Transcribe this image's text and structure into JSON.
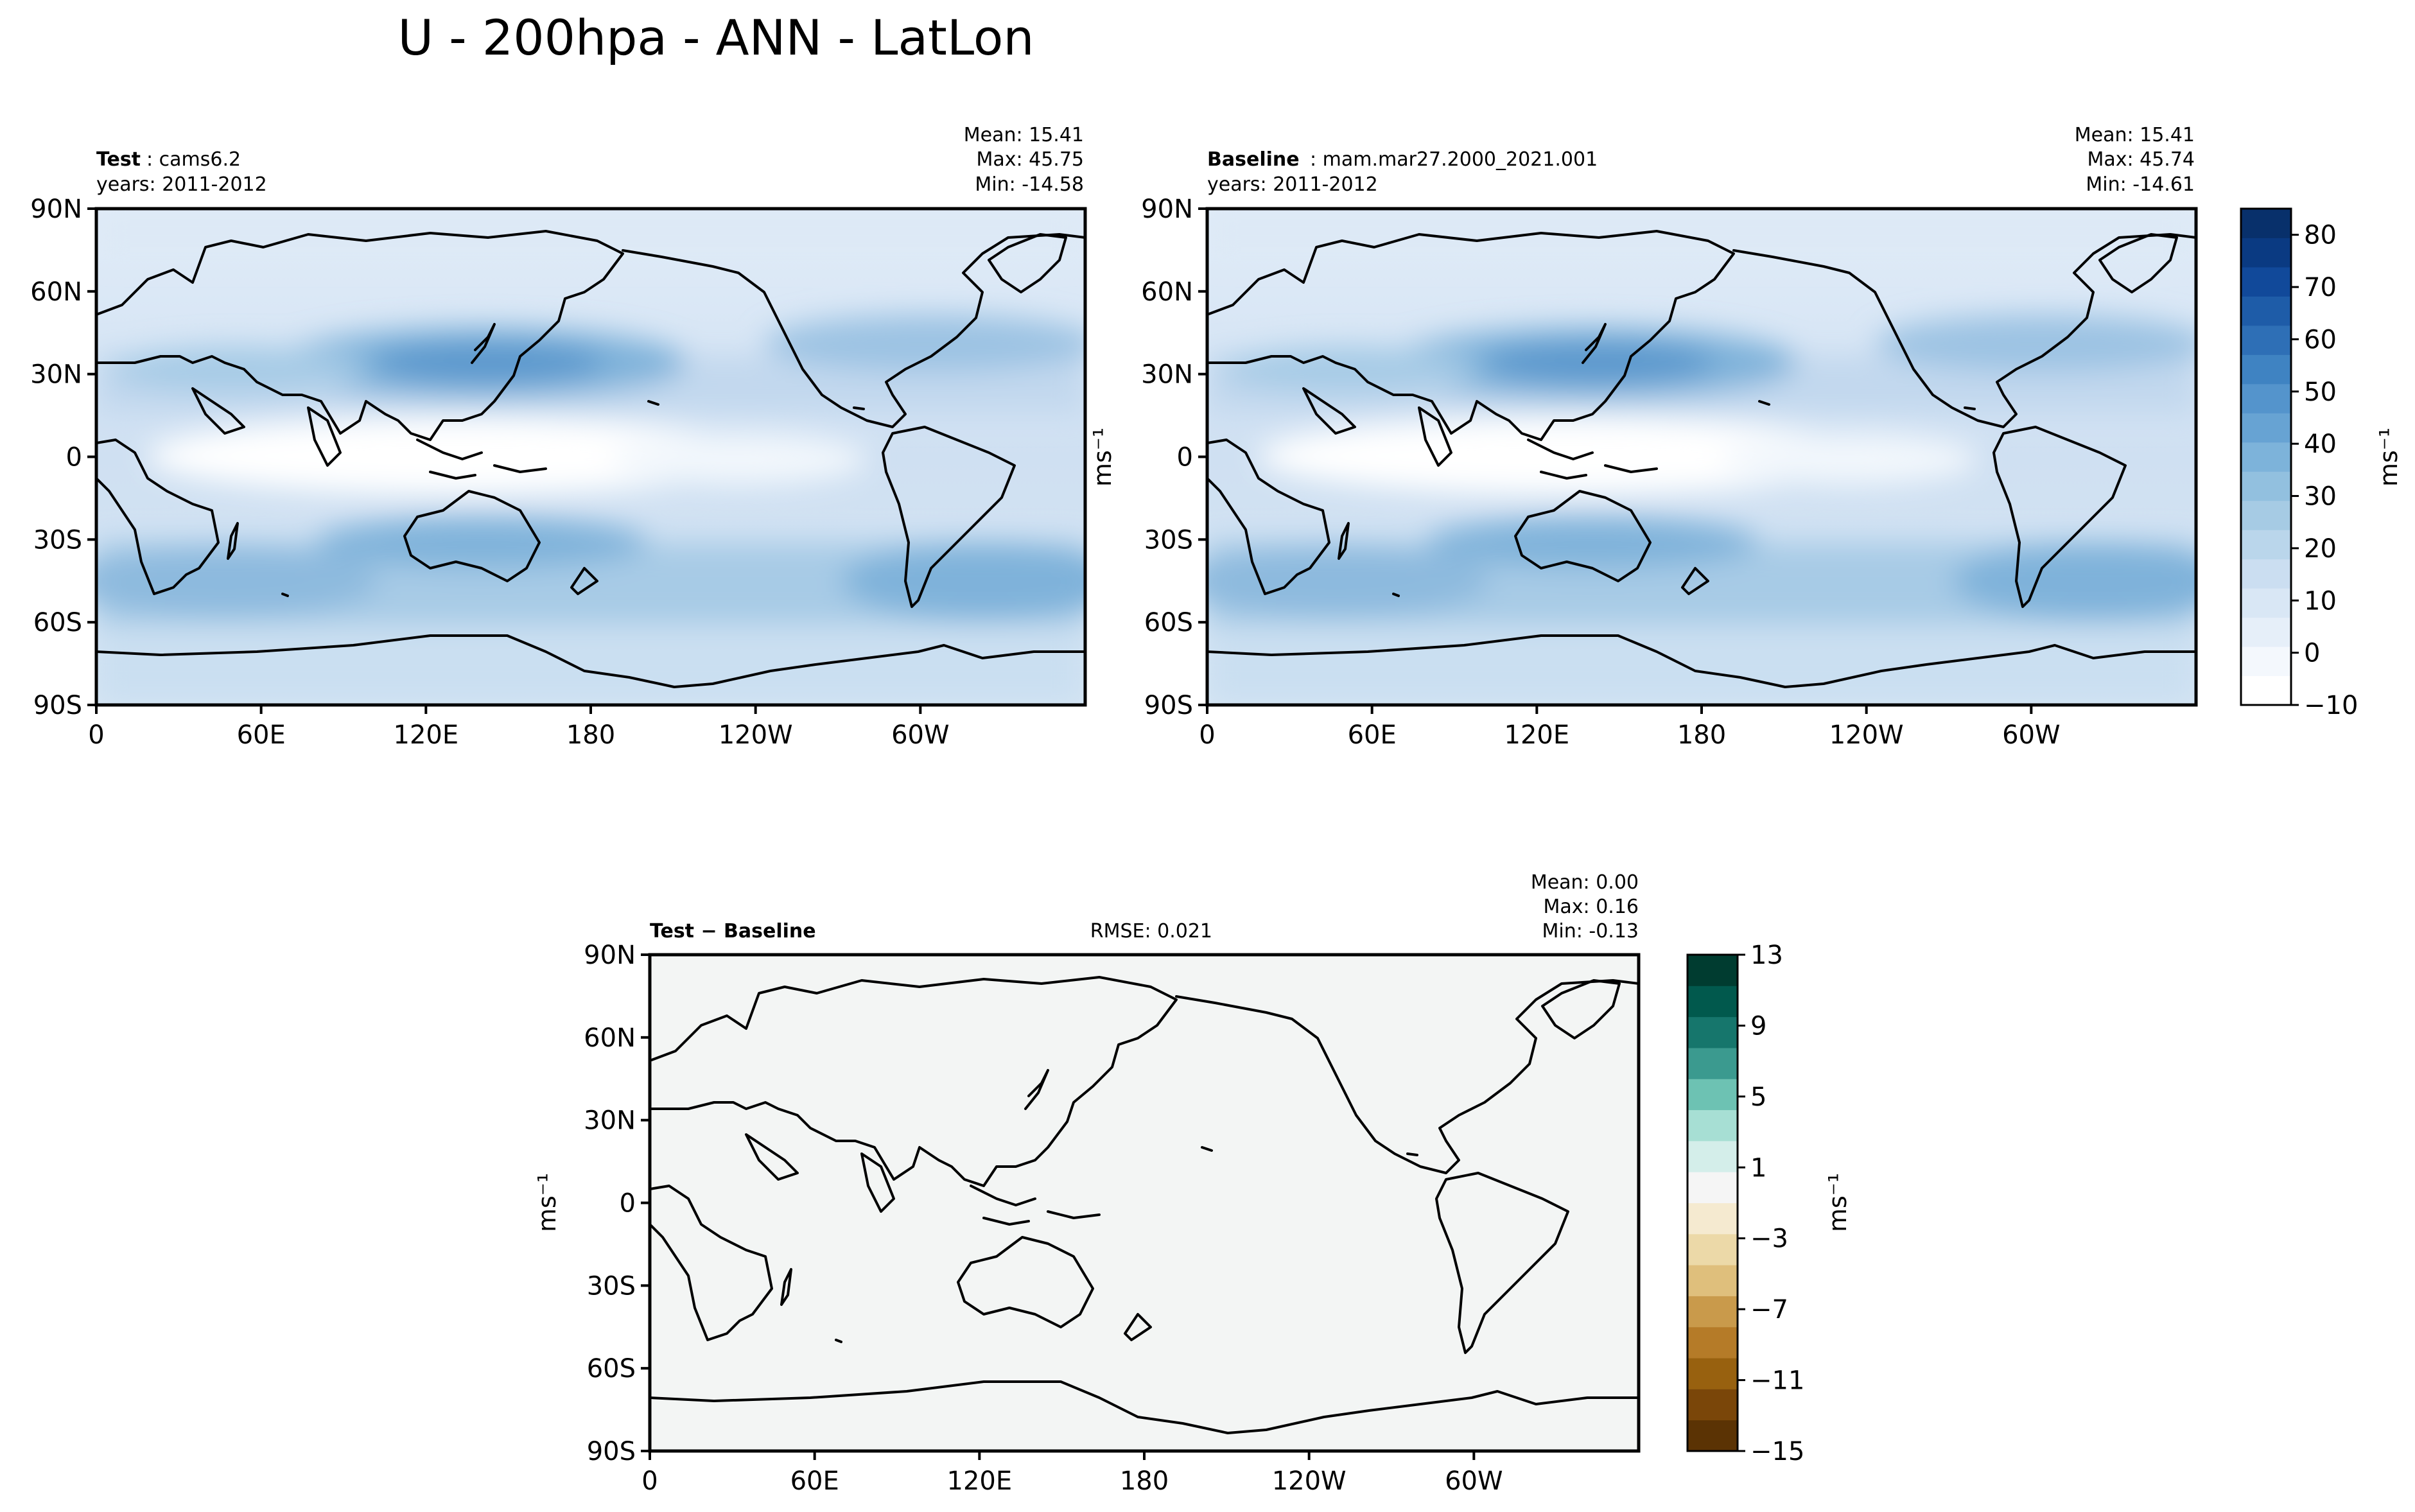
{
  "figure": {
    "title": "U - 200hpa - ANN - LatLon"
  },
  "colors": {
    "main_colorbar": [
      "#ffffff",
      "#f4f8fd",
      "#e6eff9",
      "#d9e7f5",
      "#cbdef1",
      "#bad6eb",
      "#a6cbe4",
      "#92c0df",
      "#7db3da",
      "#67a3d3",
      "#5494cc",
      "#3f83c2",
      "#2e6fb6",
      "#1e5ca8",
      "#11499a",
      "#0a3a82",
      "#08306b"
    ],
    "diff_colorbar": [
      "#5b3304",
      "#7a4609",
      "#98610f",
      "#b57b28",
      "#c99a4b",
      "#dfbf7c",
      "#ecd9a8",
      "#f5ead0",
      "#f5f5f5",
      "#d4eeea",
      "#a7dfd4",
      "#6dc2b3",
      "#3b9a8f",
      "#16766c",
      "#01594d",
      "#003c30"
    ],
    "land_line": "#000000",
    "diff_field": "#f3f5f4"
  },
  "panels": {
    "test": {
      "label_bold": "Test",
      "label_rest": ": cams6.2",
      "years": "years: 2011-2012",
      "mean": "Mean: 15.41",
      "max": "Max: 45.75",
      "min": "Min: -14.58"
    },
    "baseline": {
      "label_bold": "Baseline",
      "label_rest": ": mam.mar27.2000_2021.001",
      "years": "years: 2011-2012",
      "mean": "Mean: 15.41",
      "max": "Max: 45.74",
      "min": "Min: -14.61"
    },
    "diff": {
      "label_bold": "Test − Baseline",
      "rmse": "RMSE: 0.021",
      "mean": "Mean:  0.00",
      "max": "Max:  0.16",
      "min": "Min: -0.13"
    }
  },
  "chart_data": [
    {
      "type": "heatmap",
      "name": "Test: cams6.2",
      "field": "U 200hPa annual mean",
      "x_ticks": [
        "0",
        "60E",
        "120E",
        "180",
        "120W",
        "60W"
      ],
      "y_ticks": [
        "90N",
        "60N",
        "30N",
        "0",
        "30S",
        "60S",
        "90S"
      ],
      "xlim": [
        0,
        360
      ],
      "ylim": [
        -90,
        90
      ],
      "units": "ms⁻¹",
      "stats": {
        "mean": 15.41,
        "max": 45.75,
        "min": -14.58
      }
    },
    {
      "type": "heatmap",
      "name": "Baseline: mam.mar27.2000_2021.001",
      "field": "U 200hPa annual mean",
      "x_ticks": [
        "0",
        "60E",
        "120E",
        "180",
        "120W",
        "60W"
      ],
      "y_ticks": [
        "90N",
        "60N",
        "30N",
        "0",
        "30S",
        "60S",
        "90S"
      ],
      "xlim": [
        0,
        360
      ],
      "ylim": [
        -90,
        90
      ],
      "units": "ms⁻¹",
      "stats": {
        "mean": 15.41,
        "max": 45.74,
        "min": -14.61
      }
    },
    {
      "type": "heatmap",
      "name": "Test - Baseline",
      "x_ticks": [
        "0",
        "60E",
        "120E",
        "180",
        "120W",
        "60W"
      ],
      "y_ticks": [
        "90N",
        "60N",
        "30N",
        "0",
        "30S",
        "60S",
        "90S"
      ],
      "xlim": [
        0,
        360
      ],
      "ylim": [
        -90,
        90
      ],
      "units": "ms⁻¹",
      "stats": {
        "mean": 0.0,
        "max": 0.16,
        "min": -0.13,
        "rmse": 0.021
      }
    }
  ],
  "colorbars": {
    "main": {
      "ticks": [
        "80",
        "70",
        "60",
        "50",
        "40",
        "30",
        "20",
        "10",
        "0",
        "−10"
      ],
      "range": [
        -10,
        85
      ],
      "label": "ms⁻¹"
    },
    "diff": {
      "ticks": [
        "13",
        "9",
        "5",
        "1",
        "−3",
        "−7",
        "−11",
        "−15"
      ],
      "range": [
        -15,
        13
      ],
      "label": "ms⁻¹"
    }
  },
  "axis_unit_label": "ms⁻¹"
}
